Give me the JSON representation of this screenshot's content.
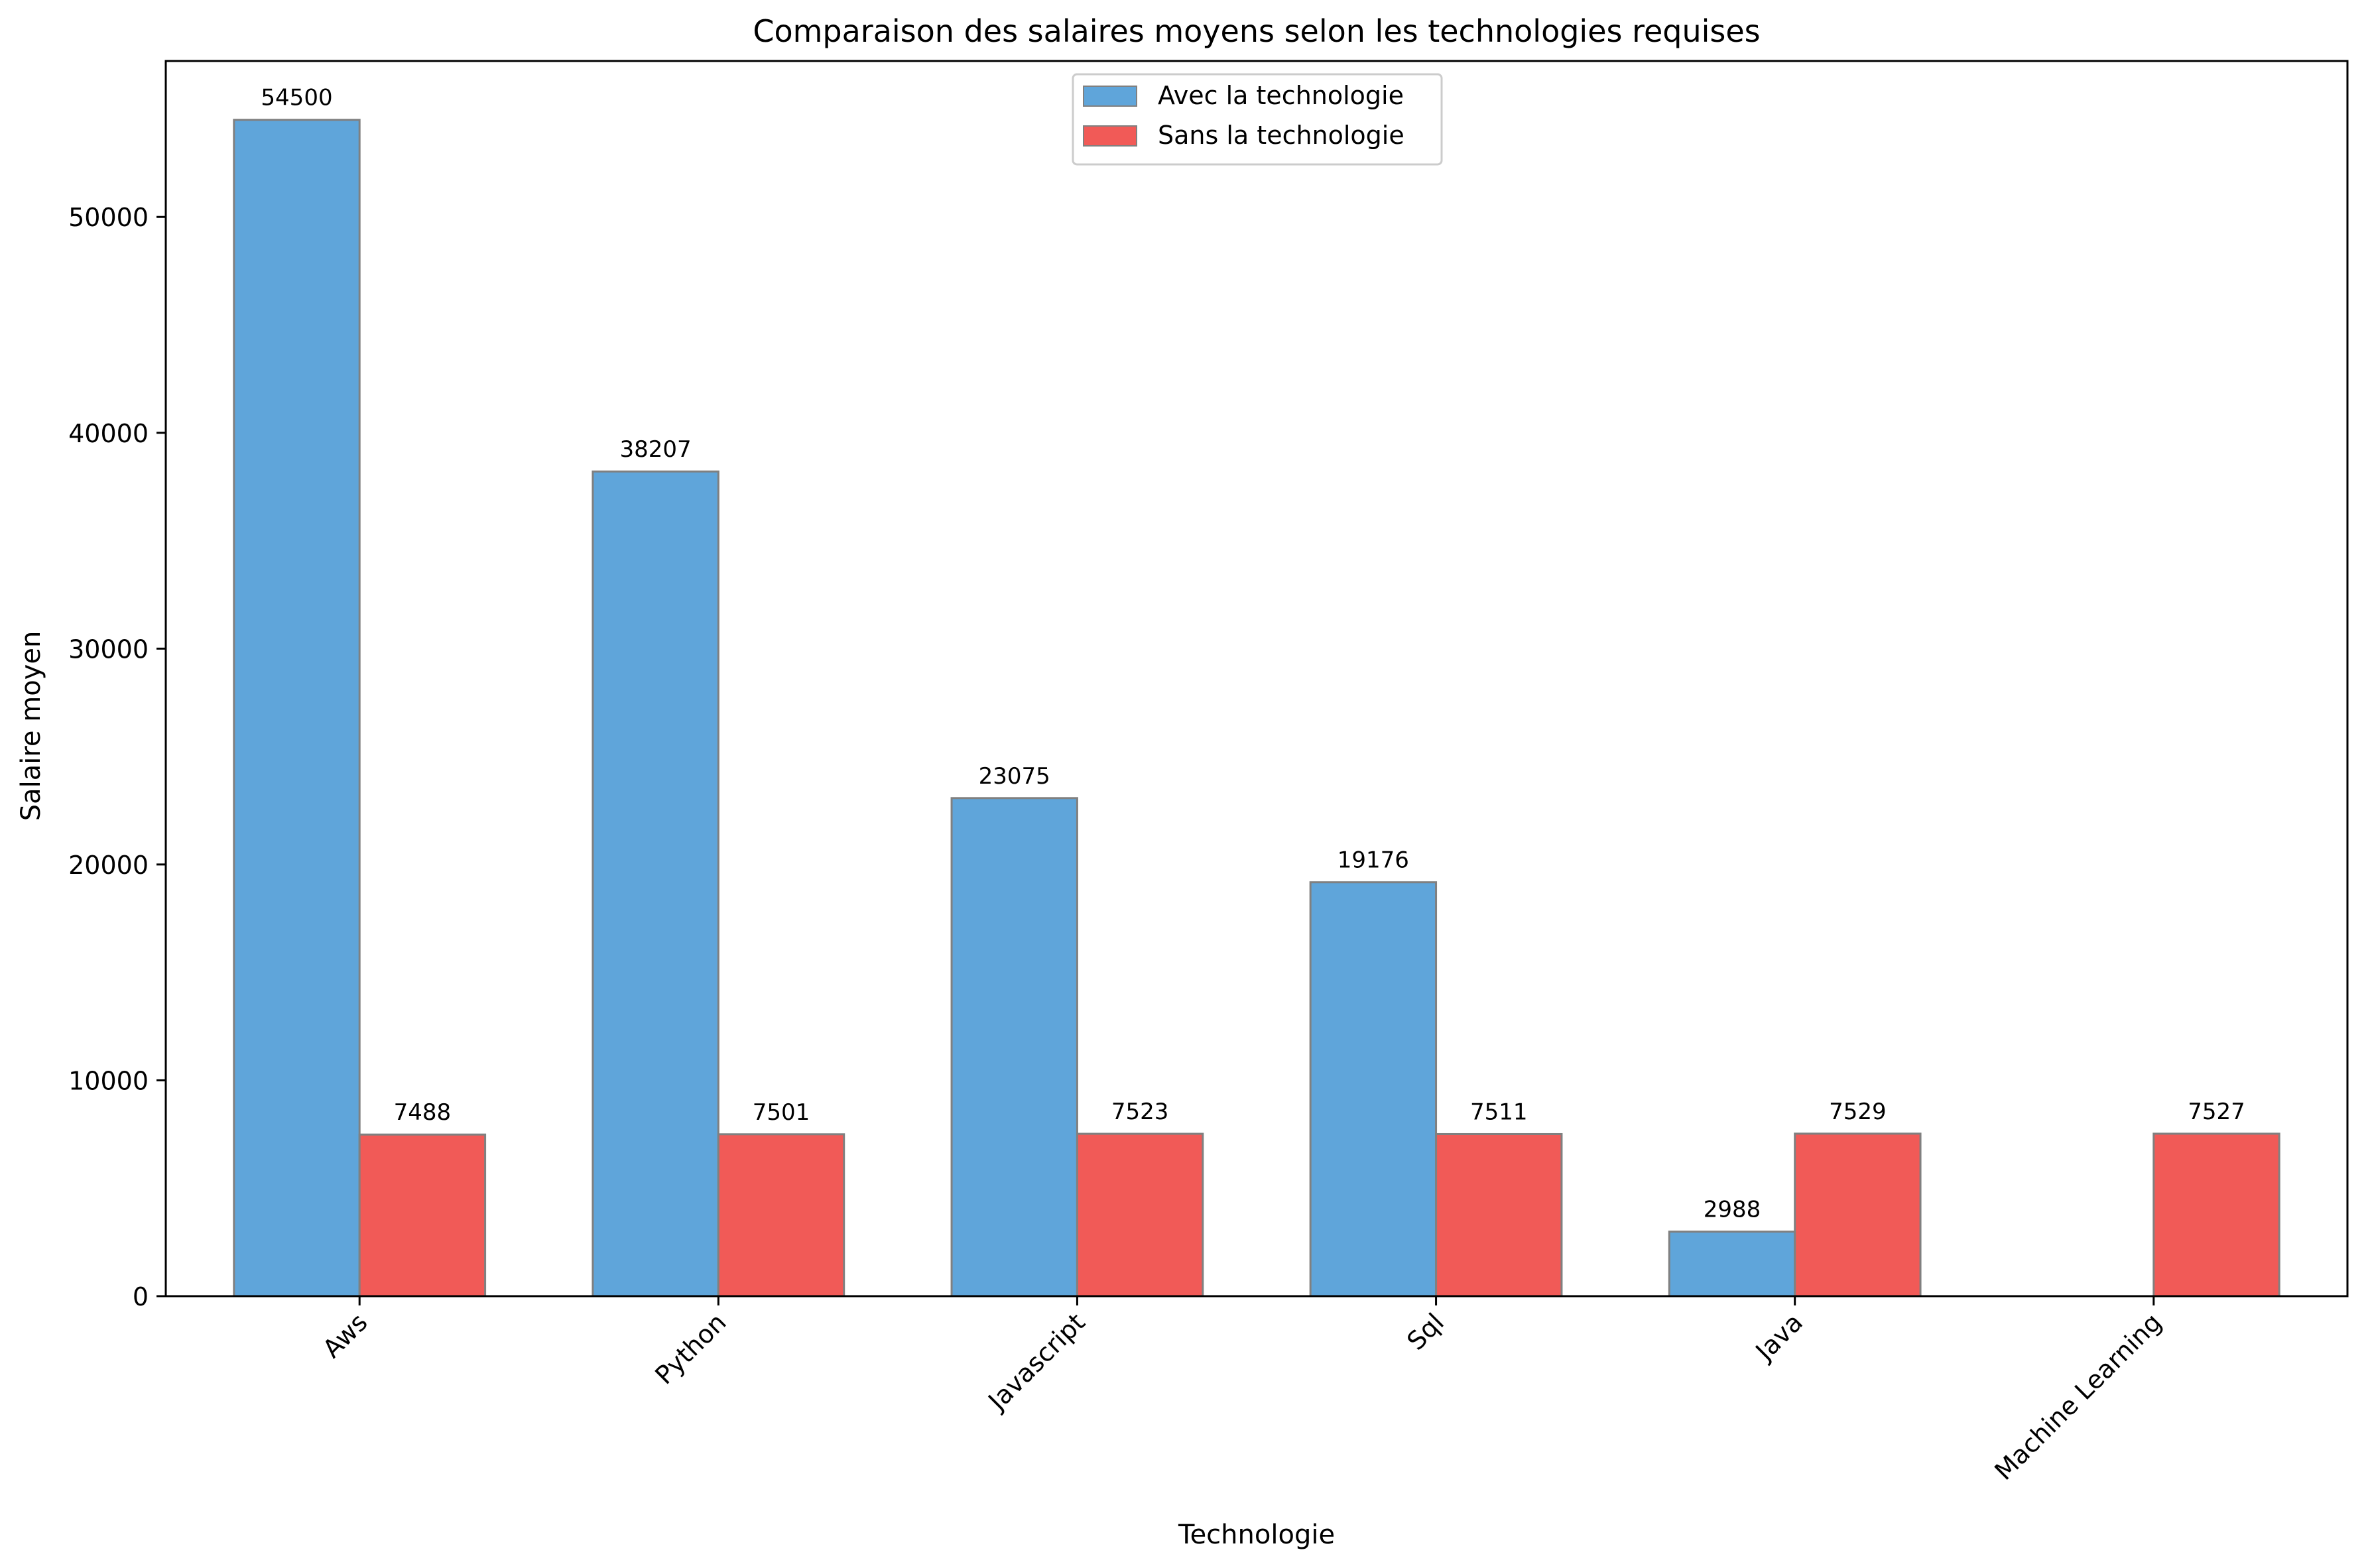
{
  "chart_data": {
    "type": "bar",
    "title": "Comparaison des salaires moyens selon les technologies requises",
    "xlabel": "Technologie",
    "ylabel": "Salaire moyen",
    "categories": [
      "Aws",
      "Python",
      "Javascript",
      "Sql",
      "Java",
      "Machine Learning"
    ],
    "series": [
      {
        "name": "Avec la technologie",
        "color": "#5fa5da",
        "values": [
          54500,
          38207,
          23075,
          19176,
          2988,
          null
        ],
        "labels": [
          "54500",
          "38207",
          "23075",
          "19176",
          "2988",
          null
        ]
      },
      {
        "name": "Sans la technologie",
        "color": "#f15a57",
        "values": [
          7488,
          7501,
          7523,
          7511,
          7529,
          7527
        ],
        "labels": [
          "7488",
          "7501",
          "7523",
          "7511",
          "7529",
          "7527"
        ]
      }
    ],
    "ylim": [
      0,
      57225
    ],
    "yticks": [
      0,
      10000,
      20000,
      30000,
      40000,
      50000
    ],
    "ytick_labels": [
      "0",
      "10000",
      "20000",
      "30000",
      "40000",
      "50000"
    ],
    "xtick_rotation": 45,
    "legend_position": "top-center",
    "grid": false,
    "edge_color": "#808080"
  }
}
